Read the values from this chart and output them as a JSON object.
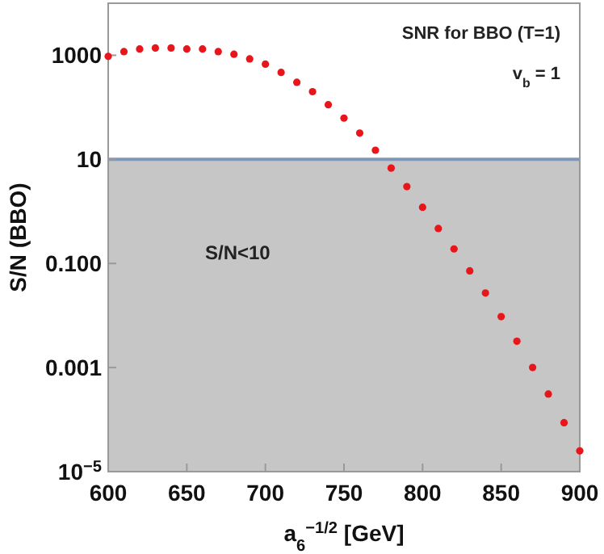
{
  "chart_data": {
    "type": "scatter",
    "xlabel": "a$_{6}$$^{−1/2}$ [GeV]",
    "ylabel": "S/N (BBO)",
    "log": true,
    "marker": "circle",
    "grid": false,
    "x": [
      600,
      610,
      620,
      630,
      640,
      650,
      660,
      670,
      680,
      690,
      700,
      710,
      720,
      730,
      740,
      750,
      760,
      770,
      780,
      790,
      800,
      810,
      820,
      830,
      840,
      850,
      860,
      870,
      880,
      890,
      900
    ],
    "series": [
      {
        "color": "#e8151b",
        "values": [
          955,
          1175,
          1318,
          1380,
          1380,
          1318,
          1318,
          1175,
          1047,
          851,
          676,
          468,
          302,
          200,
          112,
          62,
          32,
          15,
          6.8,
          3.0,
          1.2,
          0.47,
          0.19,
          0.072,
          0.027,
          0.0095,
          0.0032,
          0.001,
          0.00031,
          8.7e-05,
          2.5e-05
        ]
      }
    ],
    "xlim": [
      600,
      900
    ],
    "xticks": [
      600,
      650,
      700,
      750,
      800,
      850,
      900
    ],
    "ylim": [
      1e-05,
      10000
    ],
    "yticks": [
      {
        "value": 1e-05,
        "label": "10$^{−5}$"
      },
      0.001,
      {
        "value": 0.1,
        "label": "0.100"
      },
      10,
      1000
    ],
    "ref_lines": [
      {
        "axis": "y",
        "value": 10,
        "color": "#7f96b8"
      }
    ],
    "bands": [
      {
        "axis": "y",
        "from": 1e-05,
        "to": 10,
        "label": "S/N<10",
        "color": "#c6c6c6"
      }
    ],
    "annotations": [
      "SNR for BBO (T=1)",
      "v$_{b}$ = 1"
    ]
  }
}
